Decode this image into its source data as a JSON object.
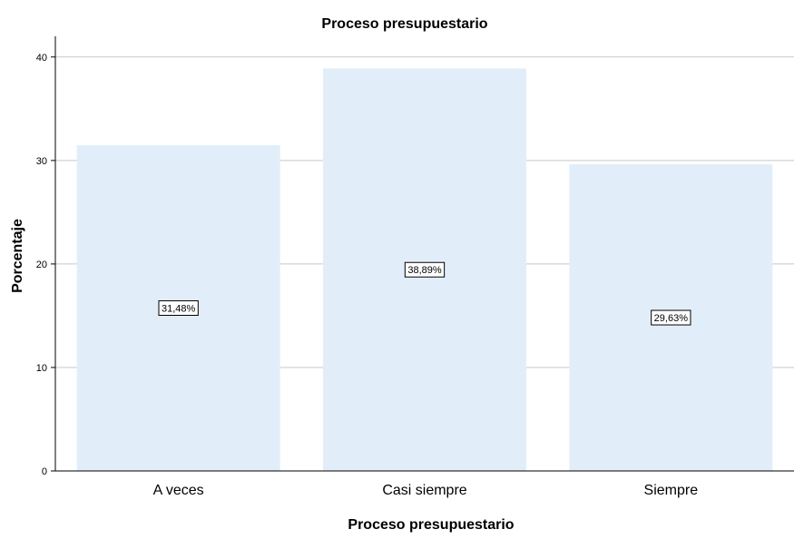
{
  "chart_data": {
    "type": "bar",
    "title": "Proceso presupuestario",
    "xlabel": "Proceso presupuestario",
    "ylabel": "Porcentaje",
    "categories": [
      "A veces",
      "Casi siempre",
      "Siempre"
    ],
    "values": [
      31.48,
      38.89,
      29.63
    ],
    "data_labels": [
      "31,48%",
      "38,89%",
      "29,63%"
    ],
    "ylim": [
      0,
      42
    ],
    "yticks": [
      0,
      10,
      20,
      30,
      40
    ],
    "ytick_labels": [
      "0",
      "10",
      "20",
      "30",
      "40"
    ],
    "grid": true,
    "legend": "none",
    "colors": {
      "bar_fill": "#e1eefa",
      "grid": "#c8c8c8",
      "axis": "#000000",
      "label_border": "#000000"
    }
  }
}
